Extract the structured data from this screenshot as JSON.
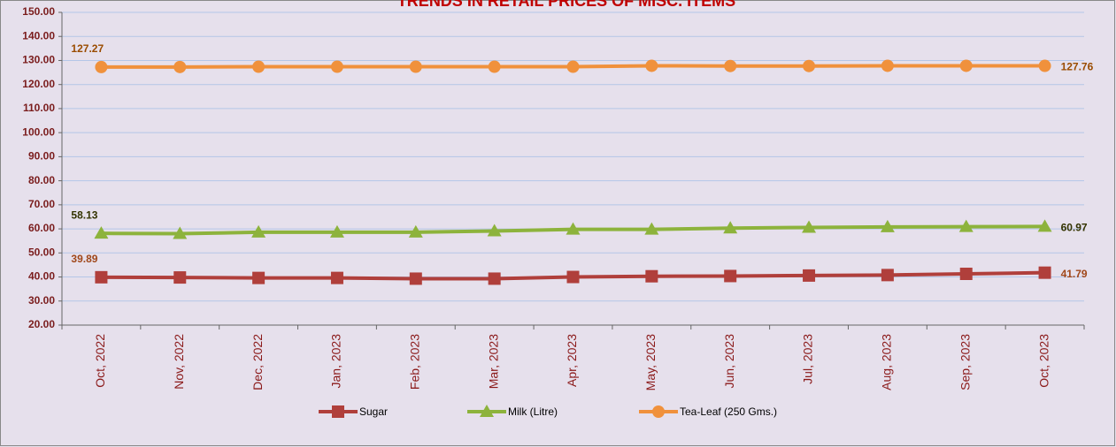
{
  "chart_data": {
    "type": "line",
    "title": "TRENDS IN RETAIL PRICES OF MISC. ITEMS",
    "categories": [
      "Oct, 2022",
      "Nov, 2022",
      "Dec, 2022",
      "Jan, 2023",
      "Feb, 2023",
      "Mar, 2023",
      "Apr, 2023",
      "May, 2023",
      "Jun, 2023",
      "Jul, 2023",
      "Aug, 2023",
      "Sep, 2023",
      "Oct, 2023"
    ],
    "series": [
      {
        "name": "Sugar",
        "color": "#b03f3b",
        "marker": "square",
        "values": [
          39.89,
          39.8,
          39.6,
          39.6,
          39.3,
          39.3,
          40.0,
          40.3,
          40.4,
          40.6,
          40.8,
          41.3,
          41.79
        ],
        "value_labels": [
          "39.89",
          null,
          null,
          null,
          null,
          null,
          null,
          null,
          null,
          null,
          null,
          null,
          "41.79"
        ]
      },
      {
        "name": "Milk (Litre)",
        "color": "#8db33c",
        "marker": "triangle",
        "values": [
          58.13,
          58.0,
          58.6,
          58.6,
          58.6,
          59.1,
          59.8,
          59.8,
          60.3,
          60.6,
          60.8,
          60.9,
          60.97
        ],
        "value_labels": [
          "58.13",
          null,
          null,
          null,
          null,
          null,
          null,
          null,
          null,
          null,
          null,
          null,
          "60.97"
        ]
      },
      {
        "name": "Tea-Leaf (250 Gms.)",
        "color": "#f0913c",
        "marker": "circle",
        "values": [
          127.27,
          127.3,
          127.4,
          127.4,
          127.4,
          127.4,
          127.4,
          127.8,
          127.7,
          127.7,
          127.8,
          127.8,
          127.76
        ],
        "value_labels": [
          "127.27",
          null,
          null,
          null,
          null,
          null,
          null,
          null,
          null,
          null,
          null,
          null,
          "127.76"
        ]
      }
    ],
    "ylim": [
      20,
      150
    ],
    "yticks": [
      {
        "value": 20,
        "label": "20.00"
      },
      {
        "value": 30,
        "label": "30.00"
      },
      {
        "value": 40,
        "label": "40.00"
      },
      {
        "value": 50,
        "label": "50.00"
      },
      {
        "value": 60,
        "label": "60.00"
      },
      {
        "value": 70,
        "label": "70.00"
      },
      {
        "value": 80,
        "label": "80.00"
      },
      {
        "value": 90,
        "label": "90.00"
      },
      {
        "value": 100,
        "label": "100.00"
      },
      {
        "value": 110,
        "label": "110.00"
      },
      {
        "value": 120,
        "label": "120.00"
      },
      {
        "value": 130,
        "label": "130.00"
      },
      {
        "value": 140,
        "label": "140.00"
      },
      {
        "value": 150,
        "label": "150.00"
      }
    ],
    "grid": true,
    "legend": "bottom"
  }
}
